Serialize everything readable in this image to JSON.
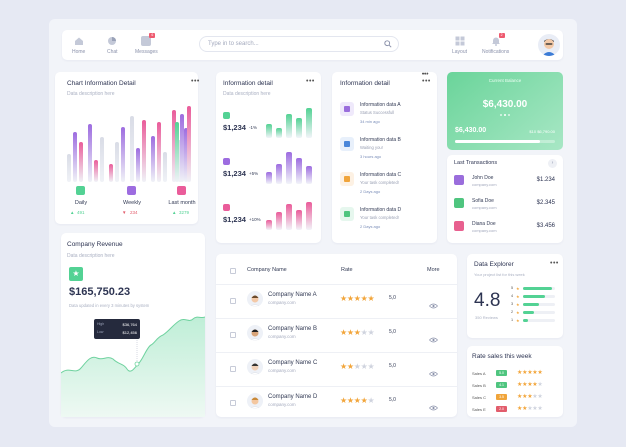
{
  "nav": {
    "home": "Home",
    "chat": "Chat",
    "messages": "Messages",
    "messages_badge": "6",
    "layout": "Layout",
    "notifications": "Notifications",
    "notifications_badge": "2",
    "search_placeholder": "Type in to search..."
  },
  "chart_info": {
    "title": "Chart Information Detail",
    "subtitle": "Data description here",
    "dots": "•••",
    "legend": [
      {
        "label": "Daily",
        "value": "491",
        "arrow": "▲",
        "color": "#53d294"
      },
      {
        "label": "Weekly",
        "value": "234",
        "arrow": "▼",
        "color": "#9d6ce0"
      },
      {
        "label": "Last month",
        "value": "3279",
        "arrow": "▲",
        "color": "#ea5c9a"
      }
    ]
  },
  "info_detail": {
    "title": "Information detail",
    "subtitle": "Data description here",
    "dots": "•••",
    "items": [
      {
        "value": "$1,234",
        "pct": "-1%",
        "pct_color": "#e25d6c"
      },
      {
        "value": "$1,234",
        "pct": "+5%",
        "pct_color": "#4fc57f"
      },
      {
        "value": "$1,234",
        "pct": "+10%",
        "pct_color": "#4fc57f"
      }
    ]
  },
  "info_list": {
    "title": "Information detail",
    "dots": "•••",
    "items": [
      {
        "title": "Information data A",
        "status": "Status Successfull",
        "time": "34 min ago",
        "color": "#efe9fb",
        "icon_color": "#9a6ddc"
      },
      {
        "title": "Information data B",
        "status": "Waiting you!",
        "time": "3 hours ago",
        "color": "#e8f0fb",
        "icon_color": "#4a86d9"
      },
      {
        "title": "Information data C",
        "status": "Your task completed!",
        "time": "2 Days ago",
        "color": "#fdf1e3",
        "icon_color": "#f0a43a"
      },
      {
        "title": "Information data D",
        "status": "Your task completed!",
        "time": "2 Days ago",
        "color": "#e6f7ee",
        "icon_color": "#4fc57f"
      }
    ]
  },
  "balance": {
    "label": "Current Balance",
    "amount": "$6,430.00",
    "bottom_amount": "$6,430.00",
    "bottom_right": "$10 $6,790.00",
    "progress": 0.85
  },
  "transactions": {
    "title": "Last Transactions",
    "items": [
      {
        "name": "John Doe",
        "email": "company.com",
        "amount": "$1.234",
        "color": "#9a6ddc"
      },
      {
        "name": "Sofia Doe",
        "email": "company.com",
        "amount": "$2.345",
        "color": "#4fc57f"
      },
      {
        "name": "Diana Doe",
        "email": "company.com",
        "amount": "$3.456",
        "color": "#e8608f"
      }
    ]
  },
  "revenue": {
    "title": "Company Revenue",
    "subtitle": "Data description here",
    "amount": "$165,750.23",
    "note": "Data updated in every 3 minutes by system",
    "tip_high_label": "High",
    "tip_high": "$36,764",
    "tip_low_label": "Low",
    "tip_low": "$12,456"
  },
  "companies": {
    "col_name": "Company Name",
    "col_rate": "Rate",
    "col_more": "More",
    "rows": [
      {
        "name": "Company Name A",
        "site": "company.com",
        "rating": "5,0",
        "stars": 5
      },
      {
        "name": "Company Name B",
        "site": "company.com",
        "rating": "5,0",
        "stars": 3
      },
      {
        "name": "Company Name C",
        "site": "company.com",
        "rating": "5,0",
        "stars": 2
      },
      {
        "name": "Company Name D",
        "site": "company.com",
        "rating": "5,0",
        "stars": 4
      }
    ]
  },
  "explorer": {
    "title": "Data Explorer",
    "subtitle": "Your project list for this week",
    "score": "4.8",
    "reviews": "350 Reviews",
    "dots": "•••",
    "levels": [
      {
        "star": "5",
        "fill": 0.9
      },
      {
        "star": "4",
        "fill": 0.7
      },
      {
        "star": "3",
        "fill": 0.5
      },
      {
        "star": "2",
        "fill": 0.35
      },
      {
        "star": "1",
        "fill": 0.15
      }
    ]
  },
  "rate_sales": {
    "title": "Rate sales this week",
    "rows": [
      {
        "label": "Sales A",
        "tag": "5.0",
        "color": "#4fc57f",
        "stars": 5
      },
      {
        "label": "Sales B",
        "tag": "4.1",
        "color": "#4fc57f",
        "stars": 4
      },
      {
        "label": "Sales C",
        "tag": "3.5",
        "color": "#f0a43a",
        "stars": 3
      },
      {
        "label": "Sales E",
        "tag": "2.0",
        "color": "#e25d6c",
        "stars": 2
      }
    ]
  }
}
